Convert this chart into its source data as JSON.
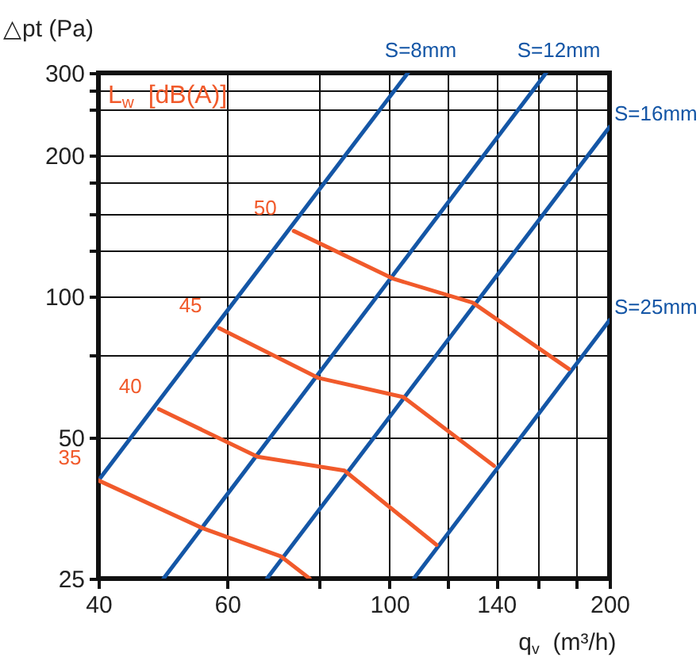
{
  "chart_data": {
    "type": "line",
    "xlabel": "q$_{v}$ (m³/h)",
    "ylabel": "△pt (Pa)",
    "legend_title": "L$_{w}$ [dB(A)]",
    "log": "xy",
    "xlim": [
      40,
      200
    ],
    "ylim": [
      25,
      300
    ],
    "xticks": [
      40,
      60,
      {
        "value": 80,
        "label": null
      },
      100,
      {
        "value": 120,
        "label": null
      },
      140,
      {
        "value": 160,
        "label": null
      },
      {
        "value": 180,
        "label": null
      },
      200
    ],
    "yticks": [
      25,
      50,
      {
        "value": 75,
        "label": null
      },
      100,
      {
        "value": 125,
        "label": null
      },
      {
        "value": 150,
        "label": null
      },
      {
        "value": 175,
        "label": null
      },
      200,
      {
        "value": 250,
        "label": null
      },
      {
        "value": 275,
        "label": null
      },
      300
    ],
    "grid": true,
    "series": [
      {
        "name": "S=8mm",
        "color": "#1456a6",
        "x": [
          40,
          106
        ],
        "values": [
          40.5,
          300
        ]
      },
      {
        "name": "S=12mm",
        "color": "#1456a6",
        "x": [
          49.1,
          163.8
        ],
        "values": [
          25,
          300
        ]
      },
      {
        "name": "S=16mm",
        "color": "#1456a6",
        "x": [
          68,
          200
        ],
        "values": [
          25,
          230
        ]
      },
      {
        "name": "S=25mm",
        "color": "#1456a6",
        "x": [
          108,
          200
        ],
        "values": [
          25,
          89
        ]
      },
      {
        "name": "50",
        "color": "#f15a2b",
        "x": [
          74,
          101.4,
          130,
          176
        ],
        "values": [
          138,
          109,
          97,
          70
        ]
      },
      {
        "name": "45",
        "color": "#f15a2b",
        "x": [
          58.5,
          80,
          104.5,
          139
        ],
        "values": [
          85.6,
          67,
          61,
          43.5
        ]
      },
      {
        "name": "40",
        "color": "#f15a2b",
        "x": [
          48.4,
          66,
          86.8,
          116
        ],
        "values": [
          57.5,
          45.5,
          42.5,
          29.5
        ]
      },
      {
        "name": "35",
        "color": "#f15a2b",
        "x": [
          40,
          55.6,
          71,
          77.8
        ],
        "values": [
          40.5,
          32,
          27.9,
          25
        ]
      }
    ]
  }
}
